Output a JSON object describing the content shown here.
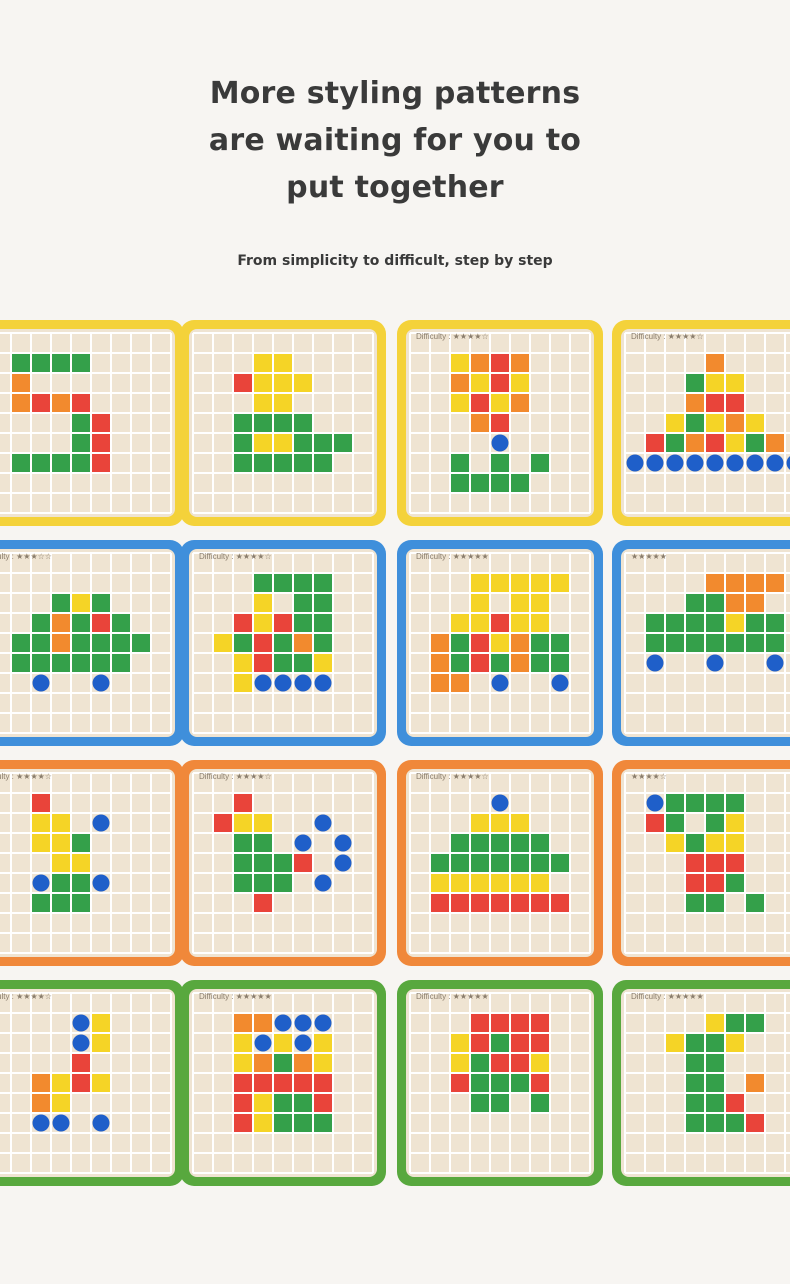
{
  "headline": {
    "line1": "More styling patterns",
    "line2": "are waiting for you to",
    "line3": "put together"
  },
  "subheadline": "From simplicity to difficult, step by step",
  "colors": {
    "yellow_frame": "#f4d23a",
    "blue_frame": "#3f8fdb",
    "orange_frame": "#f0883a",
    "green_frame": "#58a83e",
    "tile_red": "#e9443a",
    "tile_orange": "#f28a2e",
    "tile_yellow": "#f5d426",
    "tile_green": "#34a04a",
    "tile_blue": "#1f5fc9"
  },
  "cards": [
    {
      "name": "card-number-five",
      "frame": "yellow",
      "difficulty": ""
    },
    {
      "name": "card-duck",
      "frame": "yellow",
      "difficulty": ""
    },
    {
      "name": "card-flower",
      "frame": "yellow",
      "difficulty": "Difficulty : ★★★★☆"
    },
    {
      "name": "card-sun-hat",
      "frame": "yellow",
      "difficulty": "Difficulty : ★★★★☆"
    },
    {
      "name": "card-car",
      "frame": "blue",
      "difficulty": "ulty : ★★★☆☆"
    },
    {
      "name": "card-train",
      "frame": "blue",
      "difficulty": "Difficulty : ★★★★☆"
    },
    {
      "name": "card-truck",
      "frame": "blue",
      "difficulty": "Difficulty : ★★★★★"
    },
    {
      "name": "card-tank",
      "frame": "blue",
      "difficulty": "★★★★★"
    },
    {
      "name": "card-palm",
      "frame": "orange",
      "difficulty": "ulty : ★★★★☆"
    },
    {
      "name": "card-peacock",
      "frame": "orange",
      "difficulty": "Difficulty : ★★★★☆"
    },
    {
      "name": "card-teapot",
      "frame": "orange",
      "difficulty": "Difficulty : ★★★★☆"
    },
    {
      "name": "card-camel",
      "frame": "orange",
      "difficulty": "★★★★☆"
    },
    {
      "name": "card-ostrich",
      "frame": "green",
      "difficulty": "ulty : ★★★★☆"
    },
    {
      "name": "card-robot",
      "frame": "green",
      "difficulty": "Difficulty : ★★★★★"
    },
    {
      "name": "card-elephant",
      "frame": "green",
      "difficulty": "Difficulty : ★★★★★"
    },
    {
      "name": "card-dinosaur",
      "frame": "green",
      "difficulty": "Difficulty : ★★★★★"
    }
  ]
}
